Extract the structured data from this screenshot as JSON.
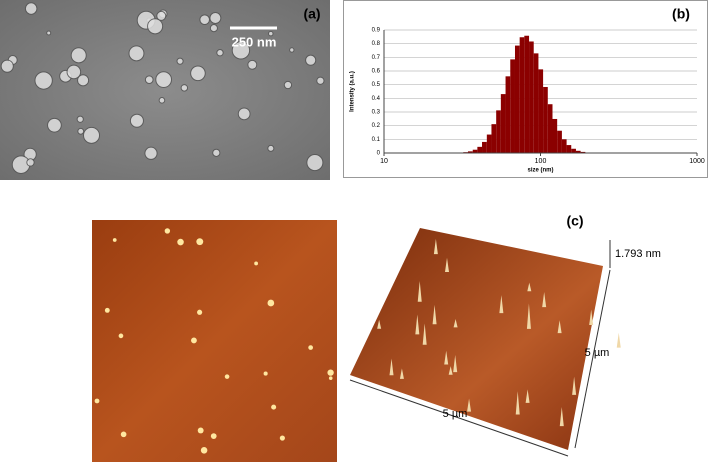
{
  "panels": {
    "a": {
      "label": "(a)",
      "scale_bar": "250 nm"
    },
    "c": {
      "label": "(c)",
      "z_scale": "1.793 nm",
      "side_y": "5 µm",
      "side_x": "5 µm"
    }
  },
  "chart_data": {
    "type": "histogram",
    "label": "(b)",
    "x_label": "size (nm)",
    "y_label": "Intensity (a.u.)",
    "xscale": "log",
    "xlim": [
      10,
      1000
    ],
    "xticks": [
      10,
      100,
      1000
    ],
    "ylim": [
      0,
      0.9
    ],
    "yticks": [
      0,
      0.1,
      0.2,
      0.3,
      0.4,
      0.5,
      0.6,
      0.7,
      0.8,
      0.9
    ],
    "grid": true,
    "color": "#8b0000",
    "bins": [
      30,
      32.1,
      34.4,
      36.9,
      39.5,
      42.3,
      45.4,
      48.6,
      52.1,
      55.8,
      59.8,
      64.1,
      68.7,
      73.6,
      78.8,
      84.5,
      90.5,
      97,
      103.9,
      111.3,
      119.3,
      127.8,
      137,
      146.8,
      157.2,
      168.5,
      180.5,
      193.4,
      207.3,
      222.1,
      238,
      255
    ],
    "values": [
      0.002,
      0.006,
      0.012,
      0.024,
      0.045,
      0.081,
      0.135,
      0.211,
      0.312,
      0.431,
      0.561,
      0.685,
      0.786,
      0.847,
      0.858,
      0.816,
      0.729,
      0.612,
      0.483,
      0.357,
      0.249,
      0.163,
      0.1,
      0.058,
      0.031,
      0.016,
      0.008,
      0.003,
      0.001,
      0.001,
      0
    ]
  }
}
